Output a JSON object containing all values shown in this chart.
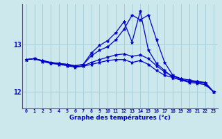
{
  "xlabel": "Graphe des températures (°c)",
  "hours": [
    0,
    1,
    2,
    3,
    4,
    5,
    6,
    7,
    8,
    9,
    10,
    11,
    12,
    13,
    14,
    15,
    16,
    17,
    18,
    19,
    20,
    21,
    22,
    23
  ],
  "line1": [
    12.68,
    12.7,
    12.66,
    12.62,
    12.6,
    12.58,
    12.55,
    12.58,
    12.82,
    12.98,
    13.08,
    13.25,
    13.48,
    13.05,
    13.7,
    12.88,
    12.6,
    12.45,
    12.3,
    12.25,
    12.22,
    12.22,
    12.2,
    12.0
  ],
  "line2": [
    12.68,
    12.7,
    12.66,
    12.62,
    12.6,
    12.58,
    12.55,
    12.58,
    12.76,
    12.88,
    12.95,
    13.1,
    13.32,
    13.62,
    13.52,
    13.62,
    13.1,
    12.62,
    12.35,
    12.28,
    12.25,
    12.22,
    12.18,
    12.0
  ],
  "line3": [
    12.68,
    12.7,
    12.65,
    12.61,
    12.59,
    12.57,
    12.53,
    12.55,
    12.62,
    12.68,
    12.73,
    12.78,
    12.8,
    12.75,
    12.78,
    12.7,
    12.55,
    12.42,
    12.33,
    12.27,
    12.22,
    12.2,
    12.18,
    12.0
  ],
  "line4": [
    12.68,
    12.7,
    12.64,
    12.6,
    12.58,
    12.55,
    12.52,
    12.54,
    12.58,
    12.62,
    12.66,
    12.68,
    12.68,
    12.62,
    12.66,
    12.58,
    12.45,
    12.35,
    12.3,
    12.25,
    12.2,
    12.18,
    12.15,
    12.0
  ],
  "line_color": "#0000cc",
  "bg_color": "#cce8ec",
  "grid_color": "#a8d0d8",
  "axis_color": "#555577",
  "ylim": [
    11.65,
    13.85
  ],
  "yticks": [
    12,
    13
  ],
  "marker": "*",
  "marker_size": 3.5,
  "line_width": 0.9
}
